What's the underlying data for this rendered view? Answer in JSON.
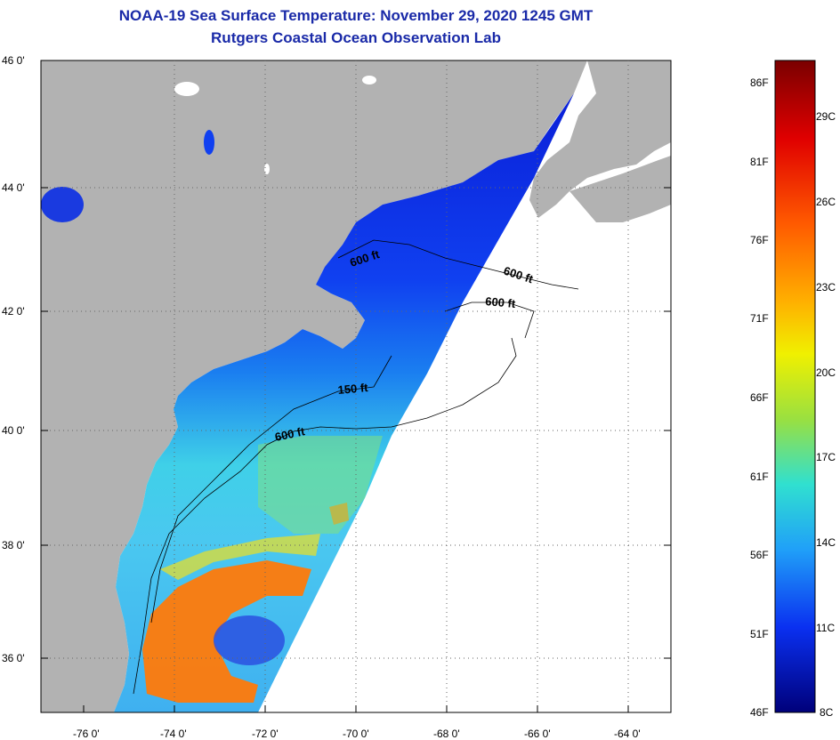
{
  "title_line1": "NOAA-19 Sea Surface Temperature:  November 29, 2020 1245 GMT",
  "title_line2": "Rutgers Coastal Ocean Observation Lab",
  "lat_labels": [
    "46 0'",
    "44 0'",
    "42 0'",
    "40 0'",
    "38 0'",
    "36 0'"
  ],
  "lon_labels": [
    "-76 0'",
    "-74 0'",
    "-72 0'",
    "-70 0'",
    "-68 0'",
    "-66 0'",
    "-64 0'"
  ],
  "isobaths": [
    "600 ft",
    "600 ft",
    "600 ft",
    "150 ft",
    "600 ft"
  ],
  "colorbar": {
    "fahrenheit": [
      "86F",
      "81F",
      "76F",
      "71F",
      "66F",
      "61F",
      "56F",
      "51F",
      "46F"
    ],
    "celsius": [
      "29C",
      "26C",
      "23C",
      "20C",
      "17C",
      "14C",
      "11C",
      "8C"
    ]
  },
  "colors": {
    "land": "#b2b2b2",
    "title": "#1a2aa8",
    "cold": "#0a1fd8",
    "warm": "#ff7a0a"
  }
}
